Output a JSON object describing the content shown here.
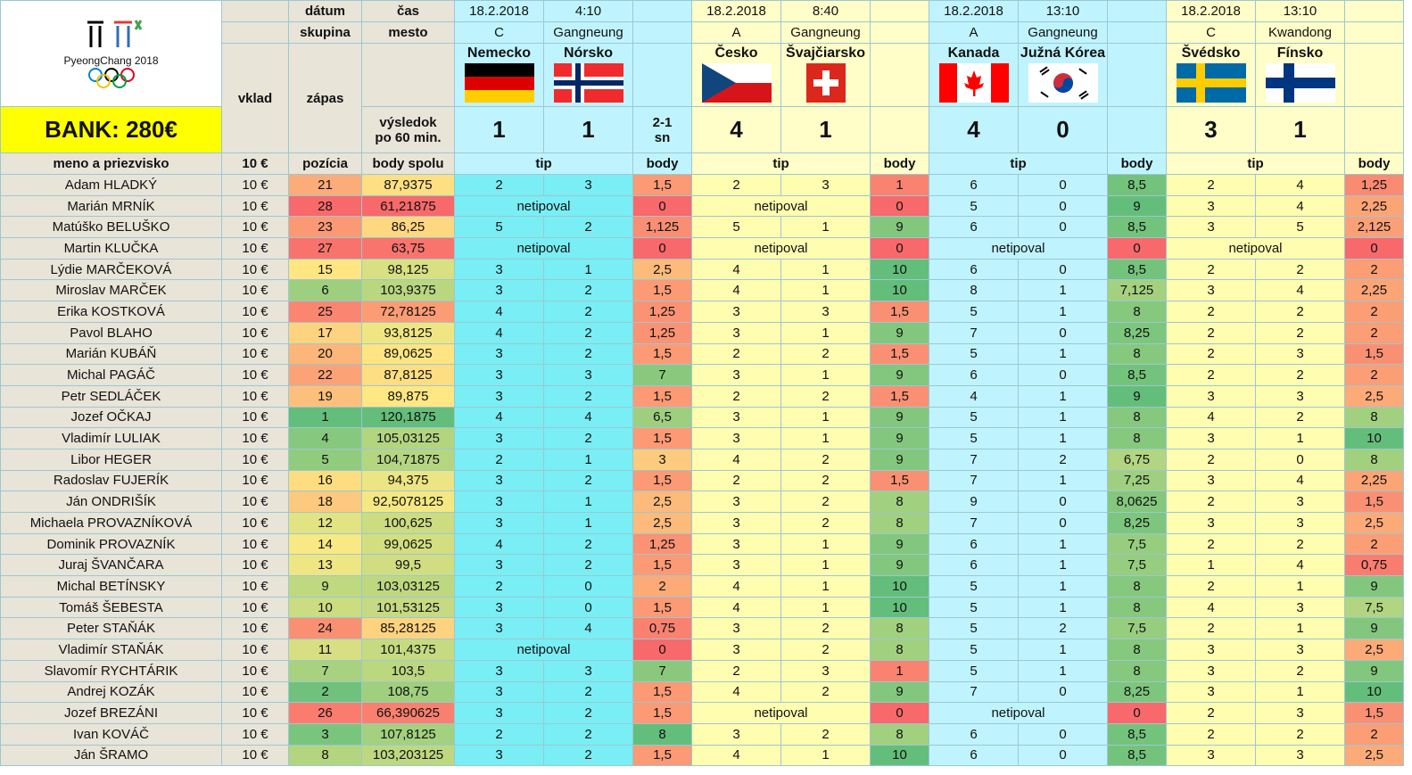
{
  "logo": {
    "text": "PyeongChang 2018",
    "icon": "olympic-rings-icon"
  },
  "bank": "BANK: 280€",
  "labels": {
    "datum": "dátum",
    "cas": "čas",
    "skupina": "skupina",
    "mesto": "mesto",
    "vklad": "vklad",
    "zapas": "zápas",
    "vysledok1": "výsledok",
    "vysledok2": "po 60 min.",
    "meno": "meno a priezvisko",
    "vklad_val": "10 €",
    "pozicia": "pozícia",
    "body_spolu": "body spolu",
    "tip": "tip",
    "body": "body",
    "netipoval": "netipoval"
  },
  "matches": [
    {
      "date": "18.2.2018",
      "time": "4:10",
      "group": "C",
      "city": "Gangneung",
      "home": "Nemecko",
      "away": "Nórsko",
      "home_flag": "germany-flag-icon",
      "away_flag": "norway-flag-icon",
      "score_home": "1",
      "score_away": "1",
      "extra1": "2-1",
      "extra2": "sn",
      "tip_color": "#79eef4",
      "tip_band": "cyan"
    },
    {
      "date": "18.2.2018",
      "time": "8:40",
      "group": "A",
      "city": "Gangneung",
      "home": "Česko",
      "away": "Švajčiarsko",
      "home_flag": "czech-flag-icon",
      "away_flag": "switzerland-flag-icon",
      "score_home": "4",
      "score_away": "1",
      "extra1": "",
      "extra2": "",
      "tip_color": "#fffdb0",
      "tip_band": "yellow"
    },
    {
      "date": "18.2.2018",
      "time": "13:10",
      "group": "A",
      "city": "Gangneung",
      "home": "Kanada",
      "away": "Južná Kórea",
      "home_flag": "canada-flag-icon",
      "away_flag": "south-korea-flag-icon",
      "score_home": "4",
      "score_away": "0",
      "extra1": "",
      "extra2": "",
      "tip_color": "#bff4ff",
      "tip_band": "cyan"
    },
    {
      "date": "18.2.2018",
      "time": "13:10",
      "group": "C",
      "city": "Kwandong",
      "home": "Švédsko",
      "away": "Fínsko",
      "home_flag": "sweden-flag-icon",
      "away_flag": "finland-flag-icon",
      "score_home": "3",
      "score_away": "1",
      "extra1": "",
      "extra2": "",
      "tip_color": "#fffdb0",
      "tip_band": "yellow"
    }
  ],
  "players": [
    {
      "name": "Adam HLADKÝ",
      "vklad": "10 €",
      "pos": "21",
      "pts": "87,9375",
      "t": [
        [
          "2",
          "3",
          "1,5"
        ],
        [
          "2",
          "3",
          "1"
        ],
        [
          "6",
          "0",
          "8,5"
        ],
        [
          "2",
          "4",
          "1,25"
        ]
      ]
    },
    {
      "name": "Marián MRNÍK",
      "vklad": "10 €",
      "pos": "28",
      "pts": "61,21875",
      "t": [
        [
          null,
          null,
          "0"
        ],
        [
          null,
          null,
          "0"
        ],
        [
          "5",
          "0",
          "9"
        ],
        [
          "3",
          "4",
          "2,25"
        ]
      ]
    },
    {
      "name": "Matúško BELUŠKO",
      "vklad": "10 €",
      "pos": "23",
      "pts": "86,25",
      "t": [
        [
          "5",
          "2",
          "1,125"
        ],
        [
          "5",
          "1",
          "9"
        ],
        [
          "6",
          "0",
          "8,5"
        ],
        [
          "3",
          "5",
          "2,125"
        ]
      ]
    },
    {
      "name": "Martin KLUČKA",
      "vklad": "10 €",
      "pos": "27",
      "pts": "63,75",
      "t": [
        [
          null,
          null,
          "0"
        ],
        [
          null,
          null,
          "0"
        ],
        [
          null,
          null,
          "0"
        ],
        [
          null,
          null,
          "0"
        ]
      ]
    },
    {
      "name": "Lýdie MARČEKOVÁ",
      "vklad": "10 €",
      "pos": "15",
      "pts": "98,125",
      "t": [
        [
          "3",
          "1",
          "2,5"
        ],
        [
          "4",
          "1",
          "10"
        ],
        [
          "6",
          "0",
          "8,5"
        ],
        [
          "2",
          "2",
          "2"
        ]
      ]
    },
    {
      "name": "Miroslav MARČEK",
      "vklad": "10 €",
      "pos": "6",
      "pts": "103,9375",
      "t": [
        [
          "3",
          "2",
          "1,5"
        ],
        [
          "4",
          "1",
          "10"
        ],
        [
          "8",
          "1",
          "7,125"
        ],
        [
          "3",
          "4",
          "2,25"
        ]
      ]
    },
    {
      "name": "Erika KOSTKOVÁ",
      "vklad": "10 €",
      "pos": "25",
      "pts": "72,78125",
      "t": [
        [
          "4",
          "2",
          "1,25"
        ],
        [
          "3",
          "3",
          "1,5"
        ],
        [
          "5",
          "1",
          "8"
        ],
        [
          "2",
          "2",
          "2"
        ]
      ]
    },
    {
      "name": "Pavol BLAHO",
      "vklad": "10 €",
      "pos": "17",
      "pts": "93,8125",
      "t": [
        [
          "4",
          "2",
          "1,25"
        ],
        [
          "3",
          "1",
          "9"
        ],
        [
          "7",
          "0",
          "8,25"
        ],
        [
          "2",
          "2",
          "2"
        ]
      ]
    },
    {
      "name": "Marián KUBÁŇ",
      "vklad": "10 €",
      "pos": "20",
      "pts": "89,0625",
      "t": [
        [
          "3",
          "2",
          "1,5"
        ],
        [
          "2",
          "2",
          "1,5"
        ],
        [
          "5",
          "1",
          "8"
        ],
        [
          "2",
          "3",
          "1,5"
        ]
      ]
    },
    {
      "name": "Michal PAGÁČ",
      "vklad": "10 €",
      "pos": "22",
      "pts": "87,8125",
      "t": [
        [
          "3",
          "3",
          "7"
        ],
        [
          "3",
          "1",
          "9"
        ],
        [
          "6",
          "0",
          "8,5"
        ],
        [
          "2",
          "2",
          "2"
        ]
      ]
    },
    {
      "name": "Petr SEDLÁČEK",
      "vklad": "10 €",
      "pos": "19",
      "pts": "89,875",
      "t": [
        [
          "3",
          "2",
          "1,5"
        ],
        [
          "2",
          "2",
          "1,5"
        ],
        [
          "4",
          "1",
          "9"
        ],
        [
          "3",
          "3",
          "2,5"
        ]
      ]
    },
    {
      "name": "Jozef OČKAJ",
      "vklad": "10 €",
      "pos": "1",
      "pts": "120,1875",
      "t": [
        [
          "4",
          "4",
          "6,5"
        ],
        [
          "3",
          "1",
          "9"
        ],
        [
          "5",
          "1",
          "8"
        ],
        [
          "4",
          "2",
          "8"
        ]
      ]
    },
    {
      "name": "Vladimír LULIAK",
      "vklad": "10 €",
      "pos": "4",
      "pts": "105,03125",
      "t": [
        [
          "3",
          "2",
          "1,5"
        ],
        [
          "3",
          "1",
          "9"
        ],
        [
          "5",
          "1",
          "8"
        ],
        [
          "3",
          "1",
          "10"
        ]
      ]
    },
    {
      "name": "Libor HEGER",
      "vklad": "10 €",
      "pos": "5",
      "pts": "104,71875",
      "t": [
        [
          "2",
          "1",
          "3"
        ],
        [
          "4",
          "2",
          "9"
        ],
        [
          "7",
          "2",
          "6,75"
        ],
        [
          "2",
          "0",
          "8"
        ]
      ]
    },
    {
      "name": "Radoslav FUJERÍK",
      "vklad": "10 €",
      "pos": "16",
      "pts": "94,375",
      "t": [
        [
          "3",
          "2",
          "1,5"
        ],
        [
          "2",
          "2",
          "1,5"
        ],
        [
          "7",
          "1",
          "7,25"
        ],
        [
          "3",
          "4",
          "2,25"
        ]
      ]
    },
    {
      "name": "Ján ONDRIŠÍK",
      "vklad": "10 €",
      "pos": "18",
      "pts": "92,5078125",
      "t": [
        [
          "3",
          "1",
          "2,5"
        ],
        [
          "3",
          "2",
          "8"
        ],
        [
          "9",
          "0",
          "8,0625"
        ],
        [
          "2",
          "3",
          "1,5"
        ]
      ]
    },
    {
      "name": "Michaela PROVAZNÍKOVÁ",
      "vklad": "10 €",
      "pos": "12",
      "pts": "100,625",
      "t": [
        [
          "3",
          "1",
          "2,5"
        ],
        [
          "3",
          "2",
          "8"
        ],
        [
          "7",
          "0",
          "8,25"
        ],
        [
          "3",
          "3",
          "2,5"
        ]
      ]
    },
    {
      "name": "Dominik PROVAZNÍK",
      "vklad": "10 €",
      "pos": "14",
      "pts": "99,0625",
      "t": [
        [
          "4",
          "2",
          "1,25"
        ],
        [
          "3",
          "1",
          "9"
        ],
        [
          "6",
          "1",
          "7,5"
        ],
        [
          "2",
          "2",
          "2"
        ]
      ]
    },
    {
      "name": "Juraj ŠVANČARA",
      "vklad": "10 €",
      "pos": "13",
      "pts": "99,5",
      "t": [
        [
          "3",
          "2",
          "1,5"
        ],
        [
          "3",
          "1",
          "9"
        ],
        [
          "6",
          "1",
          "7,5"
        ],
        [
          "1",
          "4",
          "0,75"
        ]
      ]
    },
    {
      "name": "Michal BETÍNSKY",
      "vklad": "10 €",
      "pos": "9",
      "pts": "103,03125",
      "t": [
        [
          "2",
          "0",
          "2"
        ],
        [
          "4",
          "1",
          "10"
        ],
        [
          "5",
          "1",
          "8"
        ],
        [
          "2",
          "1",
          "9"
        ]
      ]
    },
    {
      "name": "Tomáš ŠEBESTA",
      "vklad": "10 €",
      "pos": "10",
      "pts": "101,53125",
      "t": [
        [
          "3",
          "0",
          "1,5"
        ],
        [
          "4",
          "1",
          "10"
        ],
        [
          "5",
          "1",
          "8"
        ],
        [
          "4",
          "3",
          "7,5"
        ]
      ]
    },
    {
      "name": "Peter STAŇÁK",
      "vklad": "10 €",
      "pos": "24",
      "pts": "85,28125",
      "t": [
        [
          "3",
          "4",
          "0,75"
        ],
        [
          "3",
          "2",
          "8"
        ],
        [
          "5",
          "2",
          "7,5"
        ],
        [
          "2",
          "1",
          "9"
        ]
      ]
    },
    {
      "name": "Vladimír STAŇÁK",
      "vklad": "10 €",
      "pos": "11",
      "pts": "101,4375",
      "t": [
        [
          null,
          null,
          "0"
        ],
        [
          "3",
          "2",
          "8"
        ],
        [
          "5",
          "1",
          "8"
        ],
        [
          "3",
          "3",
          "2,5"
        ]
      ]
    },
    {
      "name": "Slavomír RYCHTÁRIK",
      "vklad": "10 €",
      "pos": "7",
      "pts": "103,5",
      "t": [
        [
          "3",
          "3",
          "7"
        ],
        [
          "2",
          "3",
          "1"
        ],
        [
          "5",
          "1",
          "8"
        ],
        [
          "3",
          "2",
          "9"
        ]
      ]
    },
    {
      "name": "Andrej KOZÁK",
      "vklad": "10 €",
      "pos": "2",
      "pts": "108,75",
      "t": [
        [
          "3",
          "2",
          "1,5"
        ],
        [
          "4",
          "2",
          "9"
        ],
        [
          "7",
          "0",
          "8,25"
        ],
        [
          "3",
          "1",
          "10"
        ]
      ]
    },
    {
      "name": "Jozef BREZÁNI",
      "vklad": "10 €",
      "pos": "26",
      "pts": "66,390625",
      "t": [
        [
          "3",
          "2",
          "1,5"
        ],
        [
          null,
          null,
          "0"
        ],
        [
          null,
          null,
          "0"
        ],
        [
          "2",
          "3",
          "1,5"
        ]
      ]
    },
    {
      "name": "Ivan KOVÁČ",
      "vklad": "10 €",
      "pos": "3",
      "pts": "107,8125",
      "t": [
        [
          "2",
          "2",
          "8"
        ],
        [
          "3",
          "2",
          "8"
        ],
        [
          "6",
          "0",
          "8,5"
        ],
        [
          "2",
          "2",
          "2"
        ]
      ]
    },
    {
      "name": "Ján ŠRAMO",
      "vklad": "10 €",
      "pos": "8",
      "pts": "103,203125",
      "t": [
        [
          "3",
          "2",
          "1,5"
        ],
        [
          "4",
          "1",
          "10"
        ],
        [
          "6",
          "0",
          "8,5"
        ],
        [
          "3",
          "3",
          "2,5"
        ]
      ]
    }
  ]
}
